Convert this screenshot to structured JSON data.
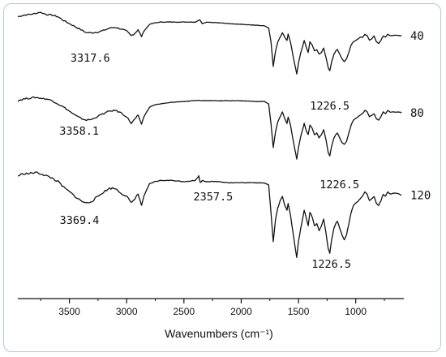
{
  "chart_data": {
    "type": "line",
    "xlabel": "Wavenumbers (cm⁻¹)",
    "xlim": [
      3950,
      580
    ],
    "xticks": [
      3500,
      3000,
      2500,
      2000,
      1500,
      1000
    ],
    "tick_labels": [
      "3500",
      "3000",
      "2500",
      "2000",
      "1500",
      "1000"
    ],
    "ylabel": "",
    "y_axis_visible": false,
    "grid": false,
    "legend": "none",
    "series": [
      {
        "name": "40",
        "annotations": [
          {
            "text": "3317.6",
            "x": 3317.6
          },
          {
            "text": "1226.5",
            "x": 1226.5
          }
        ],
        "points": [
          [
            3950,
            0.93
          ],
          [
            3900,
            0.95
          ],
          [
            3850,
            0.96
          ],
          [
            3800,
            0.97
          ],
          [
            3760,
            0.99
          ],
          [
            3700,
            0.96
          ],
          [
            3650,
            0.95
          ],
          [
            3600,
            0.93
          ],
          [
            3550,
            0.88
          ],
          [
            3500,
            0.84
          ],
          [
            3450,
            0.8
          ],
          [
            3400,
            0.76
          ],
          [
            3350,
            0.72
          ],
          [
            3300,
            0.72
          ],
          [
            3250,
            0.73
          ],
          [
            3200,
            0.75
          ],
          [
            3150,
            0.78
          ],
          [
            3100,
            0.79
          ],
          [
            3050,
            0.77
          ],
          [
            3000,
            0.74
          ],
          [
            2960,
            0.68
          ],
          [
            2930,
            0.71
          ],
          [
            2900,
            0.76
          ],
          [
            2870,
            0.67
          ],
          [
            2850,
            0.74
          ],
          [
            2800,
            0.83
          ],
          [
            2750,
            0.85
          ],
          [
            2700,
            0.86
          ],
          [
            2600,
            0.86
          ],
          [
            2500,
            0.86
          ],
          [
            2400,
            0.86
          ],
          [
            2360,
            0.89
          ],
          [
            2340,
            0.84
          ],
          [
            2300,
            0.86
          ],
          [
            2200,
            0.85
          ],
          [
            2100,
            0.84
          ],
          [
            2000,
            0.83
          ],
          [
            1900,
            0.82
          ],
          [
            1800,
            0.81
          ],
          [
            1760,
            0.78
          ],
          [
            1740,
            0.6
          ],
          [
            1720,
            0.28
          ],
          [
            1700,
            0.48
          ],
          [
            1680,
            0.6
          ],
          [
            1660,
            0.66
          ],
          [
            1640,
            0.72
          ],
          [
            1620,
            0.66
          ],
          [
            1600,
            0.62
          ],
          [
            1590,
            0.7
          ],
          [
            1570,
            0.6
          ],
          [
            1545,
            0.4
          ],
          [
            1515,
            0.18
          ],
          [
            1500,
            0.32
          ],
          [
            1480,
            0.46
          ],
          [
            1460,
            0.56
          ],
          [
            1450,
            0.62
          ],
          [
            1430,
            0.52
          ],
          [
            1415,
            0.46
          ],
          [
            1400,
            0.6
          ],
          [
            1380,
            0.56
          ],
          [
            1360,
            0.48
          ],
          [
            1340,
            0.5
          ],
          [
            1320,
            0.44
          ],
          [
            1300,
            0.46
          ],
          [
            1280,
            0.52
          ],
          [
            1260,
            0.4
          ],
          [
            1240,
            0.26
          ],
          [
            1226.5,
            0.22
          ],
          [
            1210,
            0.34
          ],
          [
            1190,
            0.44
          ],
          [
            1175,
            0.48
          ],
          [
            1160,
            0.5
          ],
          [
            1140,
            0.44
          ],
          [
            1120,
            0.38
          ],
          [
            1100,
            0.34
          ],
          [
            1080,
            0.38
          ],
          [
            1060,
            0.46
          ],
          [
            1040,
            0.56
          ],
          [
            1020,
            0.6
          ],
          [
            1000,
            0.62
          ],
          [
            980,
            0.64
          ],
          [
            960,
            0.66
          ],
          [
            940,
            0.66
          ],
          [
            920,
            0.7
          ],
          [
            900,
            0.68
          ],
          [
            880,
            0.62
          ],
          [
            860,
            0.64
          ],
          [
            840,
            0.68
          ],
          [
            820,
            0.6
          ],
          [
            800,
            0.58
          ],
          [
            780,
            0.62
          ],
          [
            760,
            0.68
          ],
          [
            740,
            0.66
          ],
          [
            720,
            0.7
          ],
          [
            700,
            0.68
          ],
          [
            660,
            0.69
          ],
          [
            620,
            0.68
          ],
          [
            600,
            0.68
          ]
        ]
      },
      {
        "name": "80",
        "annotations": [
          {
            "text": "3358.1",
            "x": 3358.1
          },
          {
            "text": "1226.5",
            "x": 1226.5
          }
        ],
        "points": [
          [
            3950,
            0.88
          ],
          [
            3900,
            0.9
          ],
          [
            3850,
            0.91
          ],
          [
            3800,
            0.92
          ],
          [
            3750,
            0.91
          ],
          [
            3700,
            0.9
          ],
          [
            3650,
            0.88
          ],
          [
            3600,
            0.84
          ],
          [
            3550,
            0.8
          ],
          [
            3500,
            0.75
          ],
          [
            3450,
            0.7
          ],
          [
            3400,
            0.66
          ],
          [
            3350,
            0.64
          ],
          [
            3300,
            0.65
          ],
          [
            3250,
            0.69
          ],
          [
            3200,
            0.72
          ],
          [
            3150,
            0.75
          ],
          [
            3100,
            0.76
          ],
          [
            3050,
            0.73
          ],
          [
            3000,
            0.68
          ],
          [
            2960,
            0.6
          ],
          [
            2930,
            0.65
          ],
          [
            2900,
            0.7
          ],
          [
            2870,
            0.59
          ],
          [
            2850,
            0.68
          ],
          [
            2800,
            0.8
          ],
          [
            2750,
            0.83
          ],
          [
            2700,
            0.84
          ],
          [
            2600,
            0.86
          ],
          [
            2500,
            0.87
          ],
          [
            2400,
            0.88
          ],
          [
            2300,
            0.88
          ],
          [
            2200,
            0.88
          ],
          [
            2100,
            0.88
          ],
          [
            2000,
            0.88
          ],
          [
            1900,
            0.87
          ],
          [
            1800,
            0.87
          ],
          [
            1760,
            0.84
          ],
          [
            1740,
            0.6
          ],
          [
            1720,
            0.3
          ],
          [
            1700,
            0.5
          ],
          [
            1680,
            0.62
          ],
          [
            1660,
            0.68
          ],
          [
            1640,
            0.74
          ],
          [
            1620,
            0.66
          ],
          [
            1600,
            0.6
          ],
          [
            1590,
            0.68
          ],
          [
            1570,
            0.58
          ],
          [
            1545,
            0.38
          ],
          [
            1515,
            0.16
          ],
          [
            1500,
            0.3
          ],
          [
            1480,
            0.44
          ],
          [
            1460,
            0.54
          ],
          [
            1450,
            0.6
          ],
          [
            1430,
            0.5
          ],
          [
            1415,
            0.46
          ],
          [
            1400,
            0.58
          ],
          [
            1380,
            0.54
          ],
          [
            1360,
            0.46
          ],
          [
            1340,
            0.48
          ],
          [
            1320,
            0.42
          ],
          [
            1300,
            0.46
          ],
          [
            1280,
            0.52
          ],
          [
            1260,
            0.4
          ],
          [
            1240,
            0.24
          ],
          [
            1226.5,
            0.2
          ],
          [
            1210,
            0.32
          ],
          [
            1190,
            0.42
          ],
          [
            1175,
            0.46
          ],
          [
            1160,
            0.48
          ],
          [
            1140,
            0.42
          ],
          [
            1120,
            0.36
          ],
          [
            1100,
            0.34
          ],
          [
            1080,
            0.38
          ],
          [
            1060,
            0.48
          ],
          [
            1040,
            0.58
          ],
          [
            1020,
            0.64
          ],
          [
            1000,
            0.66
          ],
          [
            980,
            0.68
          ],
          [
            960,
            0.7
          ],
          [
            940,
            0.72
          ],
          [
            920,
            0.76
          ],
          [
            900,
            0.74
          ],
          [
            880,
            0.68
          ],
          [
            860,
            0.7
          ],
          [
            840,
            0.72
          ],
          [
            820,
            0.66
          ],
          [
            800,
            0.64
          ],
          [
            780,
            0.68
          ],
          [
            760,
            0.74
          ],
          [
            740,
            0.72
          ],
          [
            720,
            0.76
          ],
          [
            700,
            0.74
          ],
          [
            660,
            0.74
          ],
          [
            620,
            0.74
          ],
          [
            600,
            0.73
          ]
        ]
      },
      {
        "name": "120",
        "annotations": [
          {
            "text": "3369.4",
            "x": 3369.4
          },
          {
            "text": "2357.5",
            "x": 2357.5
          },
          {
            "text": "1226.5",
            "x": 1226.5
          }
        ],
        "points": [
          [
            3950,
            0.88
          ],
          [
            3900,
            0.9
          ],
          [
            3850,
            0.9
          ],
          [
            3800,
            0.91
          ],
          [
            3750,
            0.9
          ],
          [
            3700,
            0.88
          ],
          [
            3650,
            0.86
          ],
          [
            3600,
            0.83
          ],
          [
            3550,
            0.78
          ],
          [
            3500,
            0.74
          ],
          [
            3450,
            0.7
          ],
          [
            3400,
            0.66
          ],
          [
            3350,
            0.64
          ],
          [
            3300,
            0.66
          ],
          [
            3250,
            0.7
          ],
          [
            3200,
            0.74
          ],
          [
            3150,
            0.77
          ],
          [
            3100,
            0.77
          ],
          [
            3050,
            0.73
          ],
          [
            3000,
            0.7
          ],
          [
            2960,
            0.64
          ],
          [
            2930,
            0.68
          ],
          [
            2900,
            0.72
          ],
          [
            2870,
            0.62
          ],
          [
            2850,
            0.7
          ],
          [
            2800,
            0.81
          ],
          [
            2750,
            0.83
          ],
          [
            2700,
            0.84
          ],
          [
            2600,
            0.84
          ],
          [
            2500,
            0.83
          ],
          [
            2400,
            0.84
          ],
          [
            2370,
            0.88
          ],
          [
            2357.5,
            0.82
          ],
          [
            2340,
            0.84
          ],
          [
            2300,
            0.83
          ],
          [
            2200,
            0.83
          ],
          [
            2100,
            0.82
          ],
          [
            2000,
            0.82
          ],
          [
            1900,
            0.82
          ],
          [
            1800,
            0.82
          ],
          [
            1760,
            0.8
          ],
          [
            1740,
            0.56
          ],
          [
            1720,
            0.3
          ],
          [
            1700,
            0.5
          ],
          [
            1680,
            0.6
          ],
          [
            1660,
            0.66
          ],
          [
            1640,
            0.7
          ],
          [
            1620,
            0.62
          ],
          [
            1600,
            0.58
          ],
          [
            1590,
            0.64
          ],
          [
            1570,
            0.54
          ],
          [
            1545,
            0.36
          ],
          [
            1515,
            0.16
          ],
          [
            1500,
            0.3
          ],
          [
            1480,
            0.42
          ],
          [
            1460,
            0.52
          ],
          [
            1450,
            0.58
          ],
          [
            1430,
            0.5
          ],
          [
            1415,
            0.44
          ],
          [
            1400,
            0.56
          ],
          [
            1380,
            0.52
          ],
          [
            1360,
            0.44
          ],
          [
            1340,
            0.46
          ],
          [
            1320,
            0.4
          ],
          [
            1300,
            0.44
          ],
          [
            1280,
            0.5
          ],
          [
            1260,
            0.38
          ],
          [
            1240,
            0.24
          ],
          [
            1226.5,
            0.2
          ],
          [
            1210,
            0.32
          ],
          [
            1190,
            0.42
          ],
          [
            1175,
            0.46
          ],
          [
            1160,
            0.48
          ],
          [
            1140,
            0.42
          ],
          [
            1120,
            0.36
          ],
          [
            1100,
            0.32
          ],
          [
            1080,
            0.36
          ],
          [
            1060,
            0.46
          ],
          [
            1040,
            0.56
          ],
          [
            1020,
            0.62
          ],
          [
            1000,
            0.64
          ],
          [
            980,
            0.66
          ],
          [
            960,
            0.68
          ],
          [
            940,
            0.7
          ],
          [
            920,
            0.74
          ],
          [
            900,
            0.72
          ],
          [
            880,
            0.66
          ],
          [
            860,
            0.68
          ],
          [
            840,
            0.7
          ],
          [
            820,
            0.64
          ],
          [
            800,
            0.62
          ],
          [
            780,
            0.66
          ],
          [
            760,
            0.72
          ],
          [
            740,
            0.7
          ],
          [
            720,
            0.74
          ],
          [
            700,
            0.72
          ],
          [
            660,
            0.73
          ],
          [
            620,
            0.72
          ],
          [
            600,
            0.71
          ]
        ]
      }
    ]
  }
}
